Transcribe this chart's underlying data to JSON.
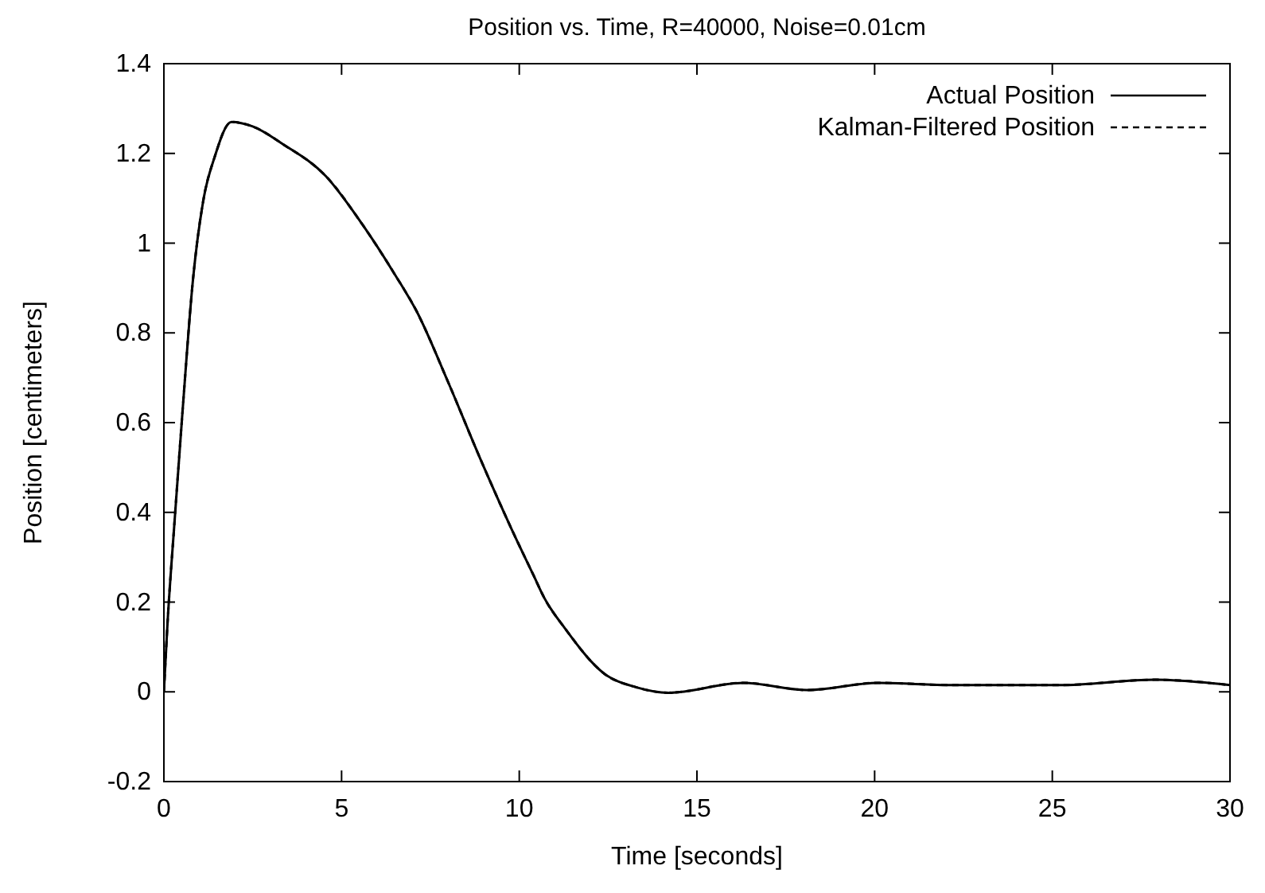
{
  "chart_data": {
    "type": "line",
    "title": "Position vs. Time, R=40000, Noise=0.01cm",
    "xlabel": "Time [seconds]",
    "ylabel": "Position [centimeters]",
    "x": [
      0,
      0.1,
      0.3,
      0.52,
      0.82,
      1.12,
      1.42,
      1.9,
      2.5,
      3.36,
      4.55,
      5.6,
      6.5,
      7.1,
      8.0,
      8.9,
      9.8,
      10.4,
      10.7,
      11.3,
      12.4,
      13.3,
      14.2,
      16.3,
      18.1,
      20.1,
      22.2,
      25.2,
      27.9,
      30
    ],
    "xlim": [
      0,
      30
    ],
    "xticks": [
      0,
      5,
      10,
      15,
      20,
      25,
      30
    ],
    "ylim": [
      -0.2,
      1.4
    ],
    "yticks": [
      -0.2,
      0,
      0.2,
      0.4,
      0.6,
      0.8,
      1,
      1.2,
      1.4
    ],
    "grid": false,
    "legend": "top right",
    "series": [
      {
        "name": "Actual Position",
        "color": "#000000",
        "line_style": "solid",
        "values": [
          0,
          0.15,
          0.38,
          0.62,
          0.92,
          1.1,
          1.19,
          1.27,
          1.26,
          1.22,
          1.15,
          1.04,
          0.93,
          0.85,
          0.69,
          0.52,
          0.36,
          0.26,
          0.21,
          0.14,
          0.04,
          0.01,
          -0.002,
          0.02,
          0.004,
          0.02,
          0.015,
          0.015,
          0.027,
          0.015
        ]
      },
      {
        "name": "Kalman-Filtered Position",
        "color": "#000000",
        "line_style": "dashed",
        "values": [
          0,
          0.15,
          0.38,
          0.62,
          0.92,
          1.1,
          1.19,
          1.27,
          1.26,
          1.22,
          1.15,
          1.04,
          0.93,
          0.85,
          0.69,
          0.52,
          0.36,
          0.26,
          0.21,
          0.14,
          0.04,
          0.01,
          -0.002,
          0.02,
          0.004,
          0.02,
          0.015,
          0.015,
          0.027,
          0.015
        ]
      }
    ]
  }
}
